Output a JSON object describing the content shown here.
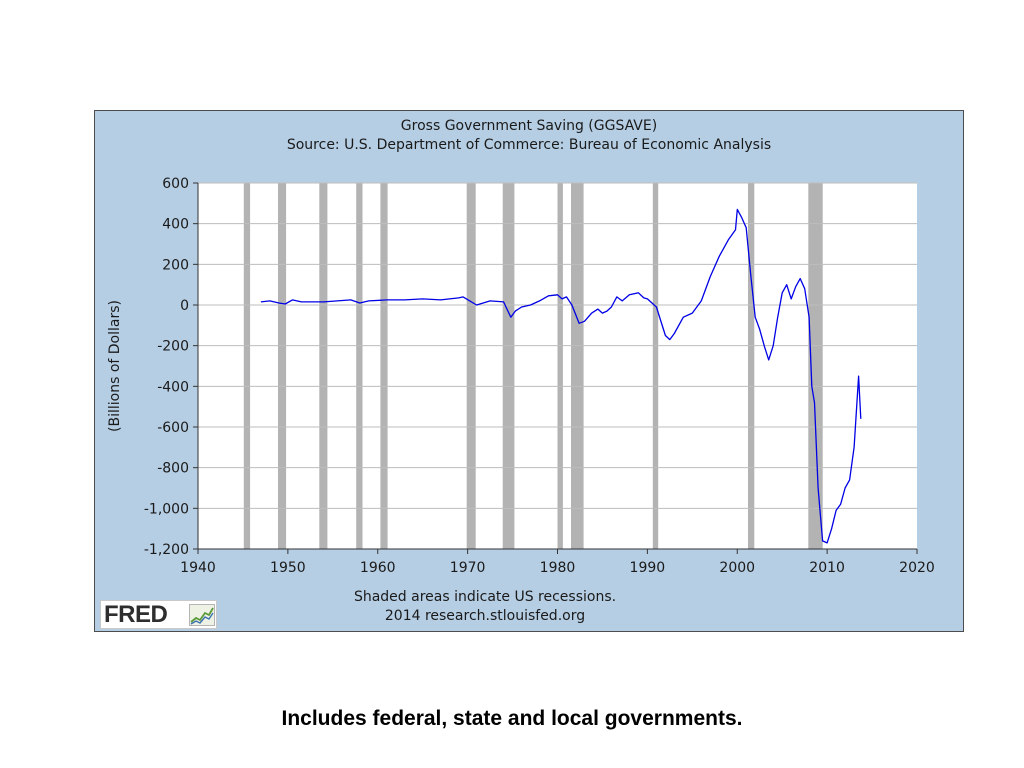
{
  "chart_data": {
    "type": "line",
    "title": "Gross Government Saving (GGSAVE)",
    "subtitle": "Source: U.S. Department of Commerce: Bureau of Economic Analysis",
    "xlabel": "",
    "ylabel": "(Billions of Dollars)",
    "xlim": [
      1940,
      2020
    ],
    "ylim": [
      -1200,
      600
    ],
    "x_ticks": [
      1940,
      1950,
      1960,
      1970,
      1980,
      1990,
      2000,
      2010,
      2020
    ],
    "x_tick_labels": [
      "1940",
      "1950",
      "1960",
      "1970",
      "1980",
      "1990",
      "2000",
      "2010",
      "2020"
    ],
    "y_ticks": [
      600,
      400,
      200,
      0,
      -200,
      -400,
      -600,
      -800,
      -1000,
      -1200
    ],
    "y_tick_labels": [
      "600",
      "400",
      "200",
      "0",
      "-200",
      "-400",
      "-600",
      "-800",
      "-1,000",
      "-1,200"
    ],
    "grid": true,
    "line_color": "#0000e6",
    "recession_color": "#b3b3b3",
    "recessions": [
      [
        1945.1,
        1945.8
      ],
      [
        1948.9,
        1949.8
      ],
      [
        1953.5,
        1954.4
      ],
      [
        1957.6,
        1958.3
      ],
      [
        1960.3,
        1961.1
      ],
      [
        1969.9,
        1970.9
      ],
      [
        1973.9,
        1975.2
      ],
      [
        1980.0,
        1980.6
      ],
      [
        1981.5,
        1982.9
      ],
      [
        1990.6,
        1991.2
      ],
      [
        2001.2,
        2001.9
      ],
      [
        2007.9,
        2009.5
      ]
    ],
    "series": [
      {
        "x": [
          1947.0,
          1948.0,
          1949.0,
          1949.7,
          1950.5,
          1951.5,
          1952.5,
          1954.0,
          1955.5,
          1957.0,
          1958.0,
          1959.0,
          1961.0,
          1963.0,
          1965.0,
          1967.0,
          1969.0,
          1969.5,
          1971.0,
          1972.5,
          1974.0,
          1974.8,
          1975.3,
          1976.0,
          1977.0,
          1978.0,
          1979.0,
          1980.0,
          1980.5,
          1981.0,
          1981.6,
          1982.4,
          1983.0,
          1983.8,
          1984.5,
          1985.0,
          1985.5,
          1986.0,
          1986.6,
          1987.2,
          1988.0,
          1989.0,
          1989.6,
          1990.0,
          1991.0,
          1992.0,
          1992.5,
          1993.0,
          1994.0,
          1995.0,
          1996.0,
          1997.0,
          1998.0,
          1999.0,
          1999.8,
          2000.0,
          2000.5,
          2001.0,
          2001.5,
          2002.0,
          2002.5,
          2003.0,
          2003.5,
          2004.0,
          2004.5,
          2005.0,
          2005.5,
          2006.0,
          2006.5,
          2007.0,
          2007.5,
          2008.0,
          2008.3,
          2008.6,
          2009.0,
          2009.5,
          2010.0,
          2010.5,
          2011.0,
          2011.5,
          2012.0,
          2012.5,
          2013.0,
          2013.5,
          2013.75
        ],
        "y": [
          15,
          20,
          10,
          5,
          25,
          15,
          15,
          15,
          20,
          25,
          10,
          20,
          25,
          25,
          30,
          25,
          35,
          40,
          0,
          20,
          15,
          -60,
          -30,
          -10,
          0,
          20,
          45,
          50,
          30,
          40,
          0,
          -90,
          -80,
          -40,
          -20,
          -40,
          -30,
          -10,
          40,
          20,
          50,
          60,
          35,
          30,
          -10,
          -150,
          -170,
          -140,
          -60,
          -40,
          20,
          140,
          240,
          320,
          370,
          470,
          430,
          380,
          150,
          -60,
          -120,
          -200,
          -270,
          -200,
          -60,
          60,
          100,
          30,
          90,
          130,
          80,
          -60,
          -400,
          -480,
          -900,
          -1160,
          -1170,
          -1100,
          -1010,
          -980,
          -900,
          -860,
          -700,
          -350,
          -560
        ]
      }
    ],
    "footer_note": "Shaded areas indicate US recessions.",
    "footer_credit": "2014 research.stlouisfed.org",
    "logo_text": "FRED"
  },
  "caption": "Includes federal, state and local governments."
}
